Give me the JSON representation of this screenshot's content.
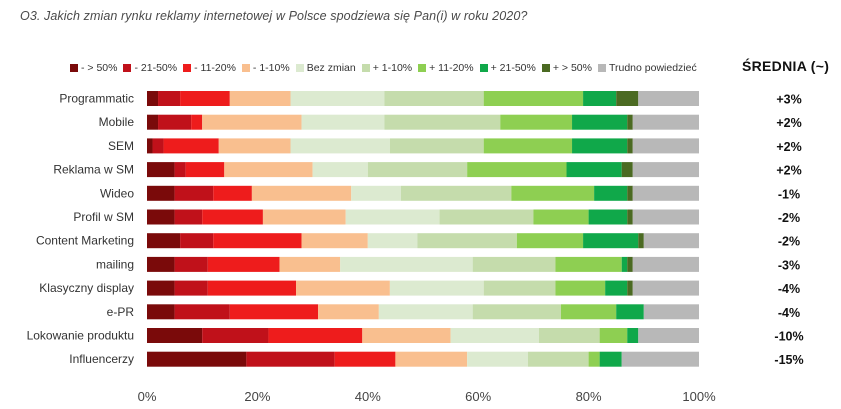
{
  "question": "O3. Jakich zmian rynku reklamy internetowej w Polsce spodziewa się Pan(i) w roku 2020?",
  "average_title": "ŚREDNIA (~)",
  "chart_data": {
    "type": "bar",
    "orientation": "horizontal",
    "stacked": true,
    "title": "O3. Jakich zmian rynku reklamy internetowej w Polsce spodziewa się Pan(i) w roku 2020?",
    "xlim": [
      0,
      100
    ],
    "x_ticks": [
      "0%",
      "20%",
      "40%",
      "60%",
      "80%",
      "100%"
    ],
    "legend_position": "top",
    "categories": [
      "Programmatic",
      "Mobile",
      "SEM",
      "Reklama w SM",
      "Wideo",
      "Profil w SM",
      "Content Marketing",
      "mailing",
      "Klasyczny display",
      "e-PR",
      "Lokowanie produktu",
      "Influencerzy"
    ],
    "series": [
      {
        "name": "- > 50%",
        "color": "#7a0a0a",
        "values": [
          2,
          2,
          1,
          5,
          5,
          5,
          6,
          5,
          5,
          5,
          10,
          18
        ]
      },
      {
        "name": "- 21-50%",
        "color": "#c0111a",
        "values": [
          4,
          6,
          2,
          2,
          7,
          5,
          6,
          6,
          6,
          10,
          12,
          16
        ]
      },
      {
        "name": "- 11-20%",
        "color": "#ee1c1c",
        "values": [
          9,
          2,
          10,
          7,
          7,
          11,
          16,
          13,
          16,
          16,
          17,
          11
        ]
      },
      {
        "name": "- 1-10%",
        "color": "#f9bf8f",
        "values": [
          11,
          18,
          13,
          16,
          18,
          15,
          12,
          11,
          17,
          11,
          16,
          13
        ]
      },
      {
        "name": "Bez zmian",
        "color": "#dcead0",
        "values": [
          17,
          15,
          18,
          10,
          9,
          17,
          9,
          24,
          17,
          17,
          16,
          11
        ]
      },
      {
        "name": "+ 1-10%",
        "color": "#c5dcac",
        "values": [
          18,
          21,
          17,
          18,
          20,
          17,
          18,
          15,
          13,
          16,
          11,
          11
        ]
      },
      {
        "name": "+ 11-20%",
        "color": "#8ecf52",
        "values": [
          18,
          13,
          16,
          18,
          15,
          10,
          12,
          12,
          9,
          10,
          5,
          2
        ]
      },
      {
        "name": "+ 21-50%",
        "color": "#10a84a",
        "values": [
          6,
          10,
          10,
          10,
          6,
          7,
          10,
          1,
          4,
          5,
          2,
          4
        ]
      },
      {
        "name": "+ > 50%",
        "color": "#4b6a22",
        "values": [
          4,
          1,
          1,
          2,
          1,
          1,
          1,
          1,
          1,
          0,
          0,
          0
        ]
      },
      {
        "name": "Trudno powiedzieć",
        "color": "#b8b8b8",
        "values": [
          11,
          12,
          12,
          12,
          12,
          12,
          10,
          12,
          12,
          10,
          11,
          14
        ]
      }
    ],
    "averages": [
      "+3%",
      "+2%",
      "+2%",
      "+2%",
      "-1%",
      "-2%",
      "-2%",
      "-3%",
      "-4%",
      "-4%",
      "-10%",
      "-15%"
    ]
  }
}
